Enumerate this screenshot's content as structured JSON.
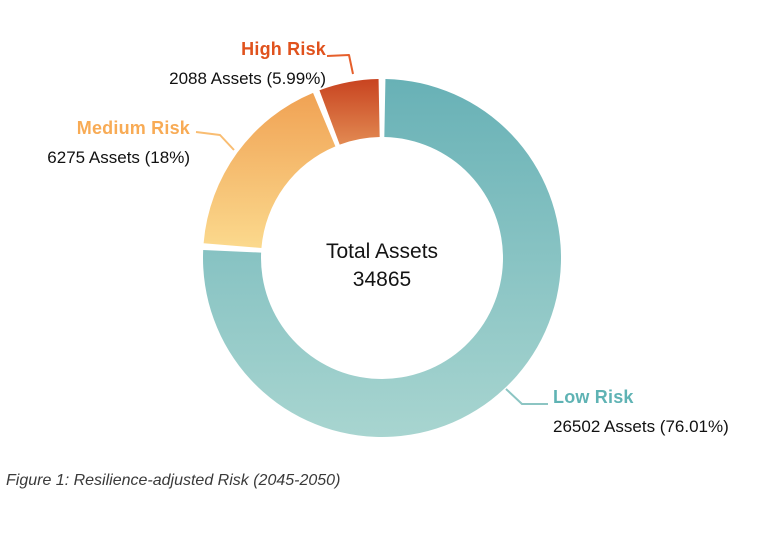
{
  "chart_data": {
    "type": "pie",
    "subtype": "donut",
    "title": "",
    "direction": "clockwise",
    "start_angle_deg": 0,
    "legend_position": "callout-labels",
    "total": 34865,
    "center": {
      "line1": "Total Assets",
      "line2": "34865"
    },
    "segments": [
      {
        "id": "low",
        "name": "Low Risk",
        "value": 26502,
        "percent": "76.01%",
        "detail": "26502 Assets (76.01%)",
        "color_start": "#68b1b6",
        "color_end": "#a8d5d0",
        "label_color": "#5fb3b4",
        "leader_color": "#8cc5c3"
      },
      {
        "id": "medium",
        "name": "Medium Risk",
        "value": 6275,
        "percent": "18%",
        "detail": "6275 Assets (18%)",
        "color_start": "#f0a254",
        "color_end": "#fbd98d",
        "label_color": "#f8ab55",
        "leader_color": "#f9bd72"
      },
      {
        "id": "high",
        "name": "High Risk",
        "value": 2088,
        "percent": "5.99%",
        "detail": "2088 Assets (5.99%)",
        "color_start": "#c84320",
        "color_end": "#e28a52",
        "label_color": "#e0521d",
        "leader_color": "#e65f2b"
      }
    ],
    "caption": "Figure 1: Resilience-adjusted Risk (2045-2050)"
  }
}
